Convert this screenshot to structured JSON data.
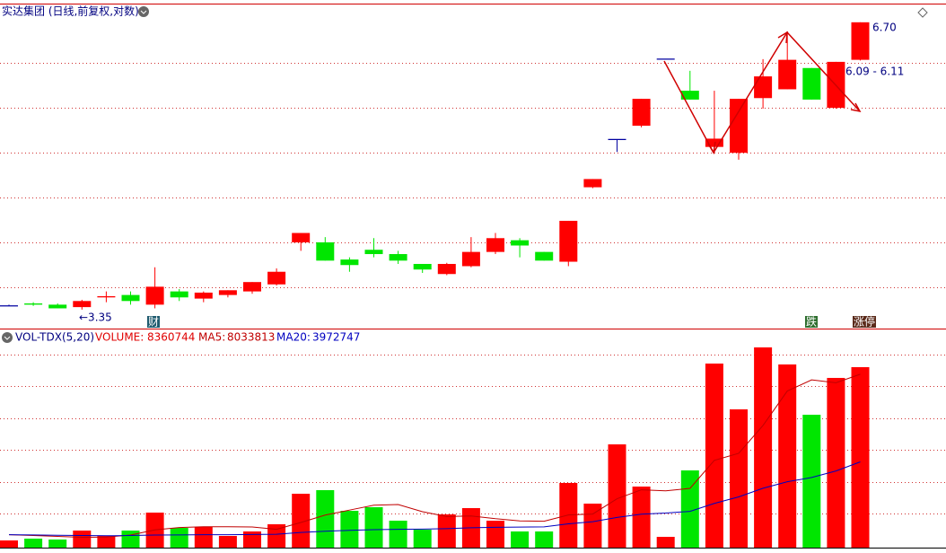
{
  "chart_data": [
    {
      "type": "candlestick",
      "title": "实达集团 (日线,前复权,对数)",
      "log_scale": true,
      "ylim": [
        3.2,
        7.07
      ],
      "up_color": "#ff0000",
      "down_color": "#00e600",
      "flat_color": "#0000a0",
      "open": [
        3.38,
        3.4,
        3.39,
        3.37,
        3.45,
        3.47,
        3.39,
        3.5,
        3.44,
        3.47,
        3.5,
        3.56,
        3.94,
        3.94,
        3.78,
        3.87,
        3.83,
        3.74,
        3.65,
        3.72,
        3.85,
        3.96,
        3.85,
        3.76,
        4.5,
        5.05,
        5.22,
        6.13,
        5.68,
        4.96,
        4.89,
        5.58,
        5.7,
        6.0,
        5.45,
        6.12
      ],
      "high": [
        3.39,
        3.41,
        3.4,
        3.43,
        3.5,
        3.5,
        3.71,
        3.52,
        3.5,
        3.51,
        3.58,
        3.7,
        4.03,
        3.99,
        3.8,
        3.98,
        3.86,
        3.74,
        3.75,
        3.99,
        4.03,
        3.98,
        3.85,
        4.15,
        4.59,
        5.05,
        5.57,
        6.13,
        5.96,
        5.68,
        5.57,
        6.13,
        6.53,
        6.0,
        6.09,
        6.7
      ],
      "low": [
        3.38,
        3.38,
        3.36,
        3.35,
        3.41,
        3.39,
        3.36,
        3.42,
        3.41,
        3.45,
        3.48,
        3.55,
        3.86,
        3.77,
        3.67,
        3.8,
        3.74,
        3.66,
        3.64,
        3.71,
        3.83,
        3.8,
        3.77,
        3.72,
        4.49,
        4.9,
        5.2,
        6.13,
        5.56,
        4.89,
        4.81,
        5.44,
        5.7,
        5.56,
        5.44,
        6.11
      ],
      "close": [
        3.38,
        3.39,
        3.36,
        3.42,
        3.46,
        3.42,
        3.54,
        3.45,
        3.49,
        3.51,
        3.58,
        3.67,
        4.03,
        3.77,
        3.73,
        3.83,
        3.77,
        3.69,
        3.74,
        3.85,
        3.98,
        3.91,
        3.77,
        4.15,
        4.59,
        5.05,
        5.57,
        6.13,
        5.56,
        5.06,
        5.57,
        5.88,
        6.12,
        5.56,
        6.09,
        6.7
      ],
      "annotations": [
        "←3.35",
        "6.70",
        "6.09 - 6.11"
      ],
      "event_labels": [
        "财",
        "跌",
        "涨停"
      ]
    },
    {
      "type": "bar",
      "title": "VOL-TDX(5,20)",
      "ylim": [
        0,
        9500000
      ],
      "series": [
        {
          "name": "VOLUME:",
          "up_color": "#ff0000",
          "down_color": "#00e600",
          "color": "#e00000",
          "values": [
            332800,
            416000,
            374400,
            790400,
            540800,
            790400,
            1622400,
            915200,
            956800,
            540800,
            748800,
            1081600,
            2496000,
            2662400,
            1705600,
            1872000,
            1248000,
            832000,
            1539200,
            1830400,
            1248000,
            748800,
            748800,
            2995200,
            2038400,
            4784000,
            2828800,
            499200,
            3577600,
            8528000,
            6406400,
            9276800,
            8486400,
            6156800,
            7862400,
            8360744
          ]
        },
        {
          "name": "MA5:",
          "type": "line",
          "color": "#c00000",
          "values": [
            600000,
            560000,
            520000,
            480000,
            491000,
            582000,
            823000,
            932000,
            965000,
            965000,
            957000,
            849000,
            1165000,
            1506000,
            1739000,
            1964000,
            1997000,
            1664000,
            1439000,
            1464000,
            1339000,
            1240000,
            1223000,
            1514000,
            1556000,
            2263000,
            2679000,
            2629000,
            2746000,
            4044000,
            4368000,
            5658000,
            7255000,
            7771000,
            7638000,
            8033813
          ]
        },
        {
          "name": "MA20:",
          "type": "line",
          "color": "#0000c0",
          "values": [
            600000,
            590000,
            570000,
            560000,
            550000,
            560000,
            580000,
            590000,
            600000,
            600000,
            610000,
            620000,
            700000,
            760000,
            800000,
            830000,
            850000,
            860000,
            880000,
            920000,
            940000,
            950000,
            960000,
            1100000,
            1200000,
            1400000,
            1550000,
            1600000,
            1680000,
            2050000,
            2350000,
            2750000,
            3050000,
            3250000,
            3550000,
            3972747
          ]
        }
      ]
    }
  ]
}
